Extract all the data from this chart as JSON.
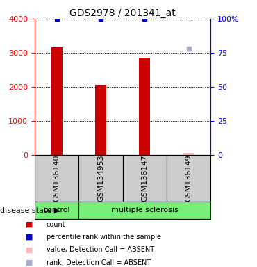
{
  "title": "GDS2978 / 201341_at",
  "samples": [
    "GSM136140",
    "GSM134953",
    "GSM136147",
    "GSM136149"
  ],
  "bar_values": [
    3150,
    2050,
    2850,
    50
  ],
  "bar_present": [
    true,
    true,
    true,
    false
  ],
  "dot_blue_pct": [
    100,
    100,
    100,
    null
  ],
  "dot_absent_val": [
    null,
    null,
    null,
    50
  ],
  "dot_absent_pct": [
    null,
    null,
    null,
    78
  ],
  "ylim_left": [
    0,
    4000
  ],
  "ylim_right": [
    0,
    100
  ],
  "yticks_left": [
    0,
    1000,
    2000,
    3000,
    4000
  ],
  "yticks_right": [
    0,
    25,
    50,
    75,
    100
  ],
  "ytick_labels_right": [
    "0",
    "25",
    "50",
    "75",
    "100%"
  ],
  "bar_color_present": "#cc0000",
  "bar_color_absent": "#ffbbbb",
  "dot_blue_color": "#0000cc",
  "dot_absent_color": "#aaaacc",
  "sample_bg_color": "#cccccc",
  "control_color": "#77ee77",
  "ms_color": "#77ee77",
  "grid_color": "#888888",
  "title_fontsize": 10,
  "tick_fontsize": 8,
  "label_fontsize": 7,
  "legend_labels": [
    "count",
    "percentile rank within the sample",
    "value, Detection Call = ABSENT",
    "rank, Detection Call = ABSENT"
  ],
  "legend_colors": [
    "#cc0000",
    "#0000cc",
    "#ffbbbb",
    "#aaaacc"
  ]
}
